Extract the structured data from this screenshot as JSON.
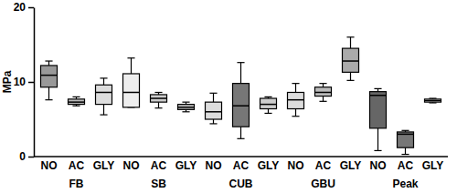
{
  "chart_data": {
    "type": "box",
    "y_label": "MPa",
    "categories": [
      "NO",
      "AC",
      "GLY",
      "NO",
      "AC",
      "GLY",
      "NO",
      "AC",
      "GLY",
      "NO",
      "AC",
      "GLY",
      "NO",
      "AC",
      "GLY"
    ],
    "groups": [
      "FB",
      "SB",
      "CUB",
      "GBU",
      "Peak"
    ],
    "values": [
      {
        "min": 7.6,
        "q1": 9.3,
        "median": 10.9,
        "q3": 12.2,
        "max": 12.8
      },
      {
        "min": 6.8,
        "q1": 7.0,
        "median": 7.3,
        "q3": 7.7,
        "max": 8.0
      },
      {
        "min": 5.6,
        "q1": 7.0,
        "median": 8.6,
        "q3": 9.6,
        "max": 10.5
      },
      {
        "min": 6.6,
        "q1": 6.6,
        "median": 8.6,
        "q3": 11.1,
        "max": 13.2
      },
      {
        "min": 6.5,
        "q1": 7.3,
        "median": 7.8,
        "q3": 8.3,
        "max": 8.6
      },
      {
        "min": 6.0,
        "q1": 6.3,
        "median": 6.6,
        "q3": 7.0,
        "max": 7.3
      },
      {
        "min": 4.4,
        "q1": 5.0,
        "median": 6.0,
        "q3": 7.3,
        "max": 8.5
      },
      {
        "min": 2.4,
        "q1": 4.0,
        "median": 6.8,
        "q3": 9.8,
        "max": 12.6
      },
      {
        "min": 5.8,
        "q1": 6.4,
        "median": 7.0,
        "q3": 7.8,
        "max": 8.0
      },
      {
        "min": 5.4,
        "q1": 6.4,
        "median": 7.6,
        "q3": 8.6,
        "max": 9.8
      },
      {
        "min": 7.4,
        "q1": 8.1,
        "median": 8.6,
        "q3": 9.3,
        "max": 9.8
      },
      {
        "min": 10.2,
        "q1": 11.3,
        "median": 12.8,
        "q3": 14.5,
        "max": 16.0
      },
      {
        "min": 0.8,
        "q1": 3.8,
        "median": 8.2,
        "q3": 8.7,
        "max": 9.1
      },
      {
        "min": 0.3,
        "q1": 1.2,
        "median": 3.0,
        "q3": 3.3,
        "max": 3.5
      },
      {
        "min": 7.2,
        "q1": 7.3,
        "median": 7.5,
        "q3": 7.7,
        "max": 7.8
      }
    ],
    "colors": [
      "#999999",
      "#bbbbbb",
      "#dddddd",
      "#eeeeee",
      "#cccccc",
      "#bbbbbb",
      "#dddddd",
      "#777777",
      "#cccccc",
      "#dddddd",
      "#bbbbbb",
      "#aaaaaa",
      "#666666",
      "#777777",
      "#dddddd"
    ],
    "ylim": [
      0,
      20
    ],
    "yticks": [
      0,
      10,
      20
    ],
    "grid": false
  }
}
